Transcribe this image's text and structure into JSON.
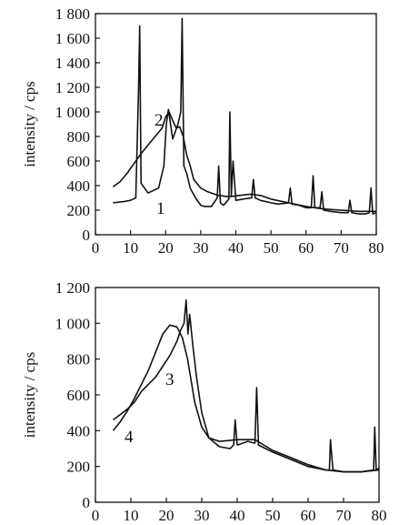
{
  "chart_data": [
    {
      "type": "line",
      "xlabel": "",
      "ylabel": "intensity / cps",
      "xlim": [
        0,
        80
      ],
      "ylim": [
        0,
        1800
      ],
      "xticks": [
        "0",
        "10",
        "20",
        "30",
        "40",
        "50",
        "60",
        "70",
        "80"
      ],
      "yticks": [
        "0",
        "200",
        "400",
        "600",
        "800",
        "1 000",
        "1 200",
        "1 400",
        "1 600",
        "1 800"
      ],
      "series": [
        {
          "name": "1",
          "x": [
            5,
            8,
            10,
            11.5,
            12.3,
            12.6,
            13,
            15,
            18,
            19.5,
            20.2,
            20.8,
            22,
            23.5,
            24.3,
            24.7,
            25.2,
            26,
            27,
            28.5,
            30,
            31,
            33,
            34.7,
            35.1,
            35.6,
            36.5,
            38,
            38.3,
            38.7,
            39.2,
            40,
            42,
            44.5,
            45,
            45.5,
            47,
            50,
            52,
            55,
            55.5,
            56,
            58,
            60,
            61.5,
            62,
            62.5,
            64,
            64.5,
            65,
            67,
            70,
            72,
            72.5,
            73,
            75,
            77,
            78,
            78.5,
            79,
            80
          ],
          "y": [
            260,
            270,
            280,
            300,
            1200,
            1700,
            420,
            340,
            380,
            560,
            900,
            1020,
            780,
            900,
            1000,
            1760,
            560,
            500,
            380,
            300,
            240,
            230,
            230,
            300,
            560,
            260,
            240,
            290,
            1000,
            320,
            600,
            280,
            290,
            300,
            450,
            300,
            280,
            260,
            250,
            260,
            380,
            250,
            240,
            220,
            220,
            480,
            220,
            220,
            350,
            200,
            190,
            180,
            180,
            280,
            180,
            170,
            170,
            180,
            380,
            170,
            180
          ]
        },
        {
          "name": "2",
          "x": [
            5,
            7,
            9,
            11,
            13,
            15,
            17,
            19,
            20,
            21,
            22,
            23,
            24,
            25,
            26,
            27,
            28,
            30,
            32,
            35,
            38,
            41,
            44,
            47,
            50,
            55,
            60,
            65,
            70,
            75,
            80
          ],
          "y": [
            390,
            430,
            500,
            580,
            660,
            730,
            800,
            870,
            960,
            1000,
            930,
            870,
            880,
            800,
            650,
            560,
            450,
            380,
            350,
            320,
            310,
            320,
            330,
            320,
            290,
            260,
            230,
            210,
            200,
            190,
            190
          ]
        }
      ],
      "annotations": [
        "1",
        "2"
      ]
    },
    {
      "type": "line",
      "xlabel": "",
      "ylabel": "intensity / cps",
      "xlim": [
        0,
        80
      ],
      "ylim": [
        0,
        1200
      ],
      "xticks": [
        "0",
        "10",
        "20",
        "30",
        "40",
        "50",
        "60",
        "70",
        "80"
      ],
      "yticks": [
        "0",
        "200",
        "400",
        "600",
        "800",
        "1 000",
        "1 200"
      ],
      "series": [
        {
          "name": "3",
          "x": [
            5,
            7,
            9,
            11,
            13,
            15,
            17,
            19,
            21,
            23,
            24,
            25,
            25.6,
            26.1,
            26.6,
            27.5,
            28.5,
            30,
            32,
            35,
            38,
            39,
            39.4,
            40,
            43,
            45,
            45.5,
            46,
            48,
            50,
            55,
            60,
            65,
            66,
            66.3,
            67,
            70,
            75,
            78.5,
            78.8,
            79.2,
            80
          ],
          "y": [
            460,
            490,
            520,
            560,
            620,
            660,
            700,
            760,
            820,
            900,
            960,
            1000,
            1130,
            940,
            1050,
            870,
            700,
            500,
            360,
            310,
            300,
            320,
            460,
            320,
            340,
            330,
            640,
            320,
            300,
            280,
            240,
            200,
            180,
            180,
            350,
            180,
            170,
            170,
            180,
            420,
            180,
            190
          ]
        },
        {
          "name": "4",
          "x": [
            5,
            7,
            9,
            11,
            13,
            15,
            17,
            19,
            21,
            23,
            24.5,
            26,
            27,
            28,
            30,
            32,
            35,
            40,
            45,
            50,
            55,
            60,
            65,
            70,
            75,
            80
          ],
          "y": [
            400,
            450,
            510,
            580,
            660,
            740,
            840,
            940,
            990,
            980,
            920,
            800,
            680,
            560,
            420,
            360,
            340,
            350,
            350,
            290,
            250,
            210,
            180,
            170,
            170,
            180
          ]
        }
      ],
      "annotations": [
        "3",
        "4"
      ]
    }
  ]
}
